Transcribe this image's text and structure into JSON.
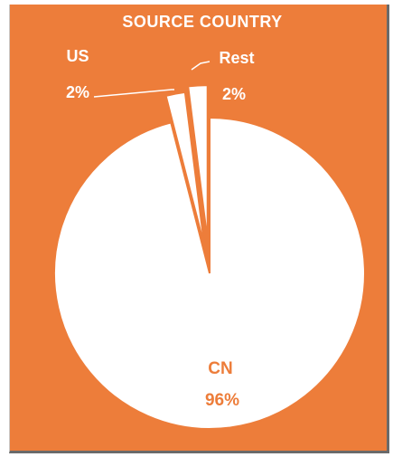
{
  "chart_data": {
    "type": "pie",
    "title": "SOURCE COUNTRY",
    "slices": [
      {
        "label": "CN",
        "value": 96,
        "value_label": "96%"
      },
      {
        "label": "US",
        "value": 2,
        "value_label": "2%"
      },
      {
        "label": "Rest",
        "value": 2,
        "value_label": "2%"
      }
    ],
    "legend": "none"
  },
  "colors": {
    "background": "#ed7d3a",
    "slice": "#ffffff",
    "label_on_slice": "#ed7d3a",
    "label_outside": "#ffffff"
  }
}
